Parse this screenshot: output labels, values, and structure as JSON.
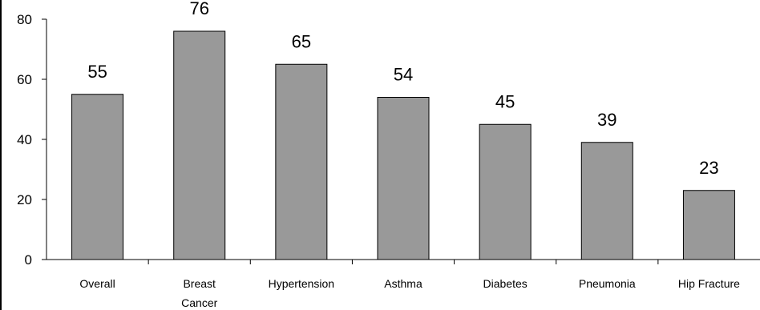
{
  "chart_data": {
    "type": "bar",
    "categories": [
      "Overall",
      "Breast Cancer",
      "Hypertension",
      "Asthma",
      "Diabetes",
      "Pneumonia",
      "Hip Fracture"
    ],
    "category_lines": [
      [
        "Overall"
      ],
      [
        "Breast",
        "Cancer"
      ],
      [
        "Hypertension"
      ],
      [
        "Asthma"
      ],
      [
        "Diabetes"
      ],
      [
        "Pneumonia"
      ],
      [
        "Hip Fracture"
      ]
    ],
    "values": [
      55,
      76,
      65,
      54,
      45,
      39,
      23
    ],
    "data_labels": [
      "55",
      "76",
      "65",
      "54",
      "45",
      "39",
      "23"
    ],
    "yticks": [
      "0",
      "20",
      "40",
      "60",
      "80"
    ],
    "ylim": [
      0,
      80
    ],
    "title": "",
    "xlabel": "",
    "ylabel": "",
    "grid": false,
    "bar_color": "#999999",
    "bar_edge_color": "#000000"
  }
}
